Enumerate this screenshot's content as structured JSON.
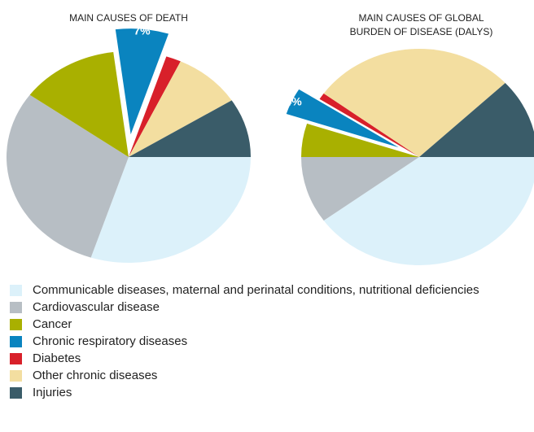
{
  "chart_data": [
    {
      "type": "pie",
      "title": "MAIN CAUSES OF DEATH",
      "categories": [
        "Communicable diseases, maternal and perinatal conditions, nutritional deficiencies",
        "Cardiovascular disease",
        "Cancer",
        "Chronic respiratory diseases",
        "Diabetes",
        "Other chronic diseases",
        "Injuries"
      ],
      "colors": [
        "#dcf1fa",
        "#b7bec4",
        "#a9b000",
        "#0a84bf",
        "#d8202a",
        "#f3dea0",
        "#3a5c69"
      ],
      "values": [
        30,
        30,
        13,
        7,
        2,
        9,
        9
      ],
      "value_labels": [
        null,
        null,
        null,
        "7%",
        null,
        null,
        null
      ]
    },
    {
      "type": "pie",
      "title": "MAIN CAUSES OF GLOBAL BURDEN OF DISEASE (DALYS)",
      "values": [
        40,
        10,
        5,
        4,
        1,
        28,
        12
      ],
      "value_labels": [
        null,
        null,
        null,
        "4%",
        null,
        null,
        null
      ]
    }
  ]
}
